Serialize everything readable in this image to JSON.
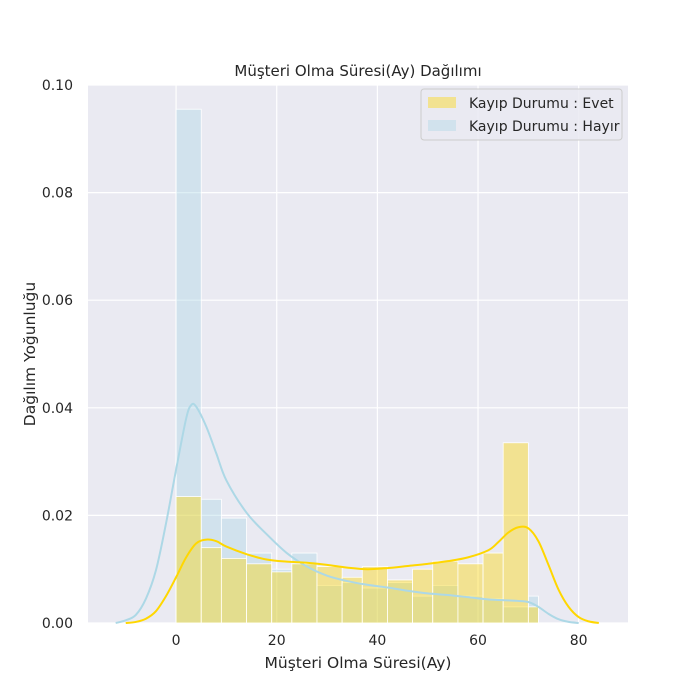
{
  "colors": {
    "plot_background": "#EAEAF2",
    "grid": "#FFFFFF",
    "series_evet": "#FFD700",
    "series_hayir": "#ADD8E6"
  },
  "chart_data": {
    "type": "bar",
    "subtype": "histogram-with-kde",
    "title": "Müşteri Olma Süresi(Ay) Dağılımı",
    "xlabel": "Müşteri Olma Süresi(Ay)",
    "ylabel": "Dağılım Yoğunluğu",
    "xlim": [
      -17.5,
      89.8
    ],
    "ylim": [
      0,
      0.1
    ],
    "x_ticks": [
      0,
      20,
      40,
      60,
      80
    ],
    "x_tick_labels": [
      "0",
      "20",
      "40",
      "60",
      "80"
    ],
    "y_ticks": [
      0,
      0.02,
      0.04,
      0.06,
      0.08,
      0.1
    ],
    "y_tick_labels": [
      "0.00",
      "0.02",
      "0.04",
      "0.06",
      "0.08",
      "0.10"
    ],
    "grid": true,
    "legend_position": "top-right",
    "bin_edges": [
      0,
      5,
      9,
      14,
      19,
      23,
      28,
      33,
      37,
      42,
      47,
      51,
      56,
      61,
      65,
      70,
      72
    ],
    "series": [
      {
        "name": "Kayıp Durumu : Evet",
        "color": "#FFD700",
        "hist": [
          0.0235,
          0.014,
          0.012,
          0.011,
          0.0095,
          0.011,
          0.0105,
          0.0085,
          0.0105,
          0.008,
          0.01,
          0.0115,
          0.011,
          0.013,
          0.0335,
          0.003
        ],
        "kde_x": [
          -10,
          -8,
          -6,
          -4,
          -2,
          0,
          2,
          4,
          6,
          8,
          10,
          14,
          18,
          22,
          26,
          30,
          34,
          38,
          42,
          46,
          50,
          54,
          58,
          62,
          64,
          66,
          68,
          70,
          72,
          74,
          76,
          78,
          80,
          82,
          84
        ],
        "kde_y": [
          0.0,
          0.0002,
          0.0008,
          0.0022,
          0.005,
          0.0085,
          0.0122,
          0.0148,
          0.0155,
          0.0152,
          0.0142,
          0.0128,
          0.0118,
          0.0114,
          0.0112,
          0.0108,
          0.0103,
          0.01,
          0.0102,
          0.0106,
          0.011,
          0.0115,
          0.0122,
          0.0135,
          0.015,
          0.0168,
          0.0178,
          0.0176,
          0.0152,
          0.0108,
          0.0062,
          0.003,
          0.0011,
          0.0003,
          0.0
        ]
      },
      {
        "name": "Kayıp Durumu : Hayır",
        "color": "#ADD8E6",
        "hist": [
          0.0955,
          0.023,
          0.0195,
          0.013,
          0.01,
          0.013,
          0.007,
          0.0075,
          0.0065,
          0.0075,
          0.005,
          0.007,
          0.005,
          0.0045,
          0.003,
          0.005
        ],
        "kde_x": [
          -12,
          -10,
          -8,
          -6,
          -4,
          -2,
          0,
          2,
          3,
          4,
          6,
          8,
          10,
          14,
          18,
          22,
          26,
          30,
          34,
          38,
          42,
          46,
          50,
          54,
          58,
          62,
          66,
          68,
          70,
          72,
          74,
          76,
          78,
          80
        ],
        "kde_y": [
          0.0,
          0.0005,
          0.0015,
          0.0045,
          0.0098,
          0.0185,
          0.0285,
          0.038,
          0.0405,
          0.0402,
          0.0365,
          0.0315,
          0.0265,
          0.0205,
          0.0165,
          0.013,
          0.0105,
          0.0088,
          0.0078,
          0.0071,
          0.0066,
          0.006,
          0.0055,
          0.0052,
          0.0048,
          0.0044,
          0.0042,
          0.0041,
          0.0039,
          0.003,
          0.0017,
          0.0007,
          0.0002,
          0.0
        ]
      }
    ]
  }
}
